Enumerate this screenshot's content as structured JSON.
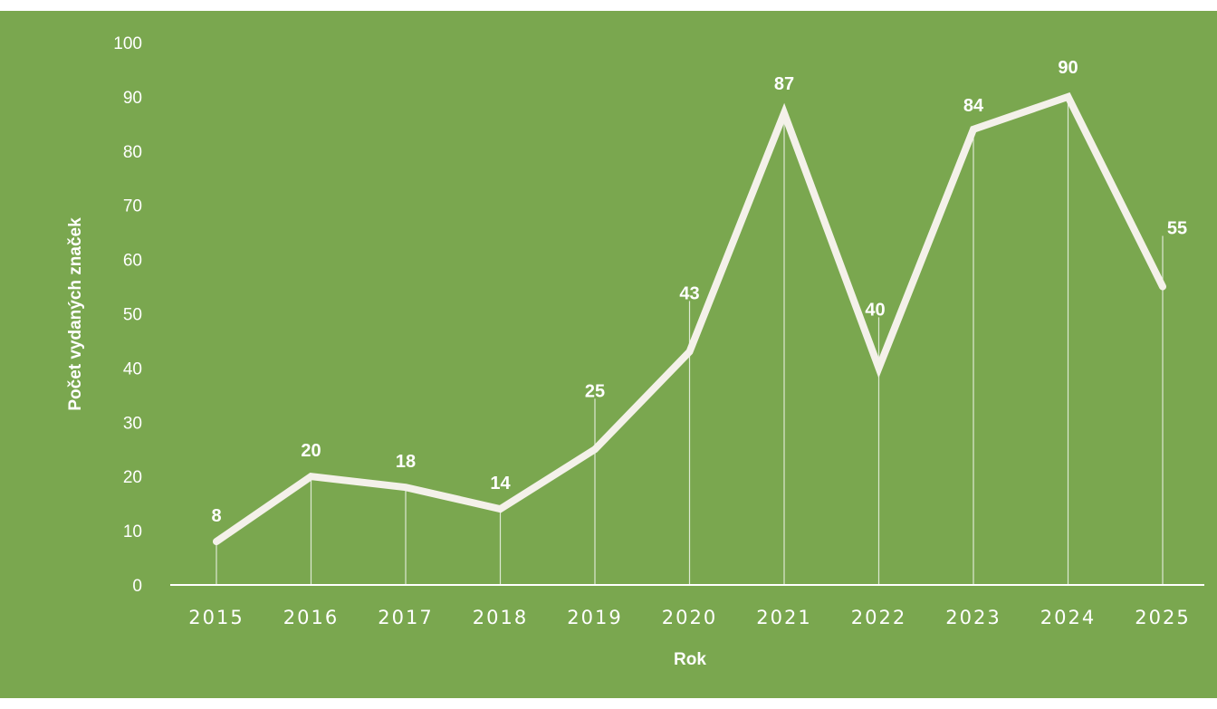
{
  "colors": {
    "background": "#7aa74f",
    "line": "#f4f1ea",
    "text": "#ffffff"
  },
  "chart_data": {
    "type": "line",
    "title": "",
    "xlabel": "Rok",
    "ylabel": "Počet vydaných značek",
    "categories": [
      "2015",
      "2016",
      "2017",
      "2018",
      "2019",
      "2020",
      "2021",
      "2022",
      "2023",
      "2024",
      "2025"
    ],
    "series": [
      {
        "values": [
          8,
          20,
          18,
          14,
          25,
          43,
          87,
          40,
          84,
          90,
          55
        ]
      }
    ],
    "data_labels": [
      "8",
      "20",
      "18",
      "14",
      "25",
      "43",
      "87",
      "40",
      "84",
      "90",
      "55"
    ],
    "ylim": [
      0,
      100
    ],
    "yticks": [
      "0",
      "10",
      "20",
      "30",
      "40",
      "50",
      "60",
      "70",
      "80",
      "90",
      "100"
    ],
    "drop_lines": true,
    "grid": false,
    "legend": "none"
  }
}
